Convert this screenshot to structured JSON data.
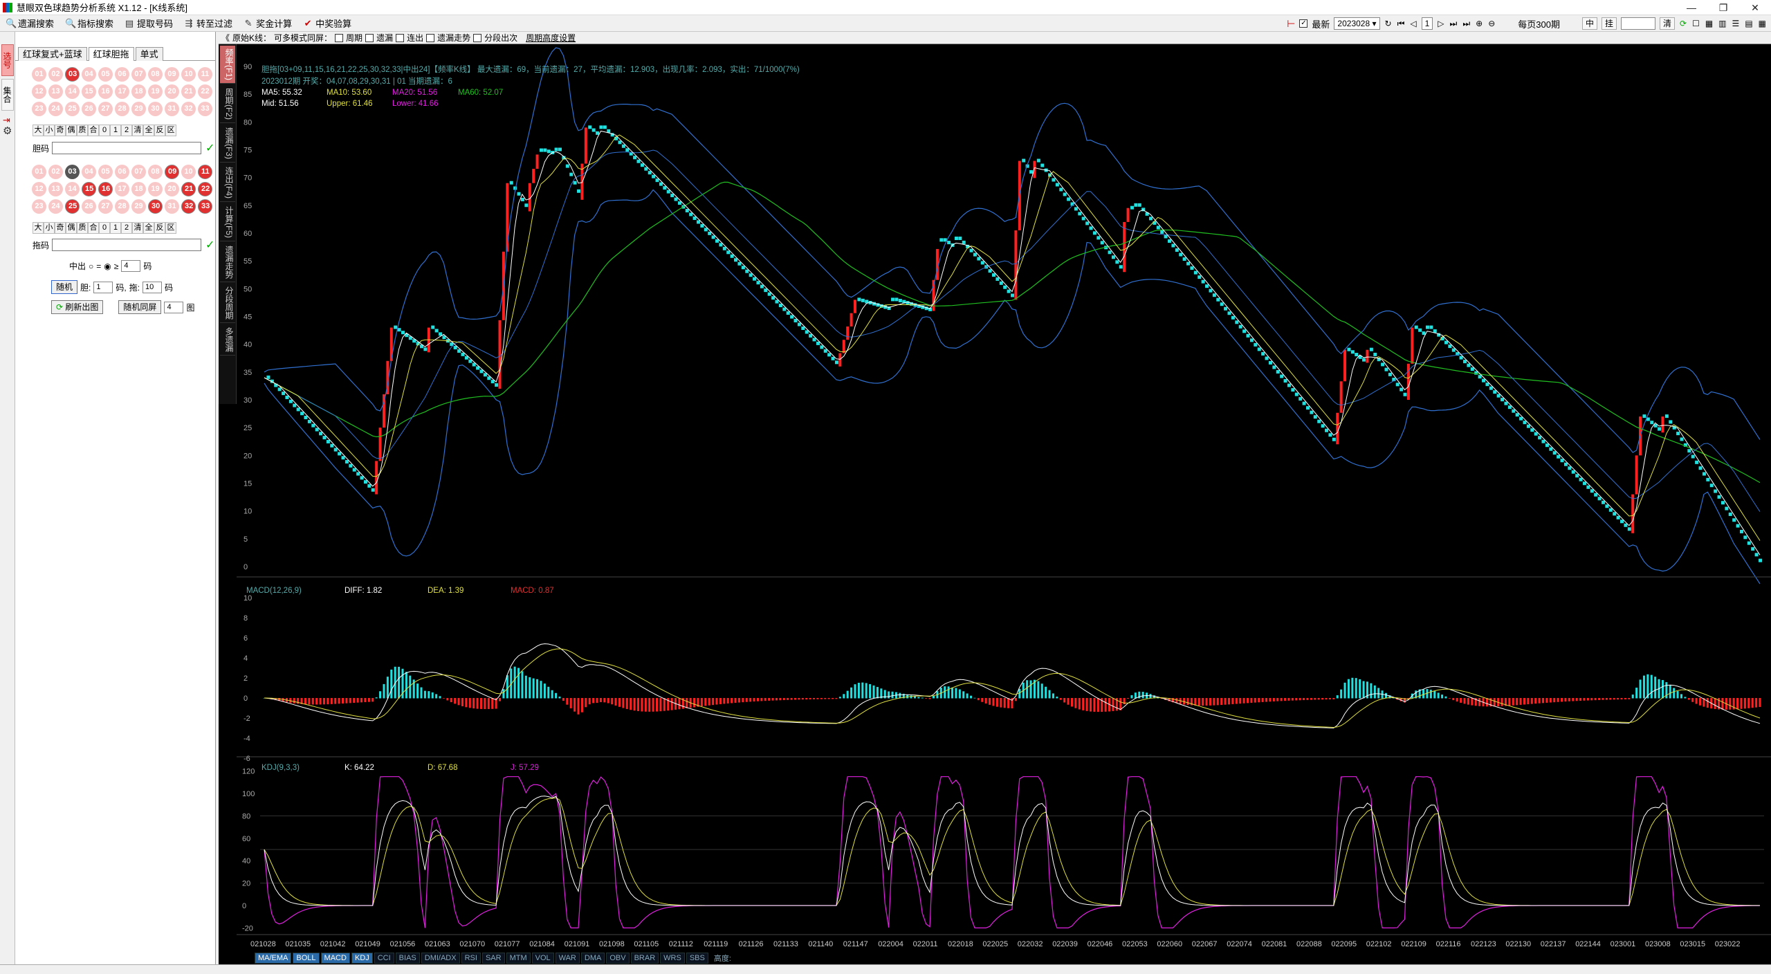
{
  "window": {
    "title": "慧眼双色球趋势分析系统 X1.12 - [K线系统]"
  },
  "toolbar": {
    "buttons": [
      {
        "icon": "search-icon",
        "label": "遗漏搜索"
      },
      {
        "icon": "search-icon",
        "label": "指标搜索"
      },
      {
        "icon": "doc-icon",
        "label": "提取号码"
      },
      {
        "icon": "filter-icon",
        "label": "转至过滤"
      },
      {
        "icon": "calc-icon",
        "label": "奖金计算"
      },
      {
        "icon": "check-icon",
        "label": "中奖验算"
      }
    ],
    "latest_label": "最新",
    "period_value": "2023028",
    "page_num": "1",
    "per_page_label": "每页300期",
    "mid_btn": "中",
    "hang_btn": "挂",
    "clear_btn": "清"
  },
  "left_tabs": [
    "选号",
    "集合"
  ],
  "panel_tabs": [
    "红球复式+蓝球",
    "红球胆拖",
    "单式"
  ],
  "balls_top": [
    "01",
    "02",
    "03",
    "04",
    "05",
    "06",
    "07",
    "08",
    "09",
    "10",
    "11",
    "12",
    "13",
    "14",
    "15",
    "16",
    "17",
    "18",
    "19",
    "20",
    "21",
    "22",
    "23",
    "24",
    "25",
    "26",
    "27",
    "28",
    "29",
    "30",
    "31",
    "32",
    "33"
  ],
  "balls_bottom": [
    "01",
    "02",
    "03",
    "04",
    "05",
    "06",
    "07",
    "08",
    "09",
    "10",
    "11",
    "12",
    "13",
    "14",
    "15",
    "16",
    "17",
    "18",
    "19",
    "20",
    "21",
    "22",
    "23",
    "24",
    "25",
    "26",
    "27",
    "28",
    "29",
    "30",
    "31",
    "32",
    "33"
  ],
  "opt_row": [
    "大",
    "小",
    "奇",
    "偶",
    "质",
    "合",
    "0",
    "1",
    "2",
    "清",
    "全",
    "反",
    "区"
  ],
  "dan_label": "胆码",
  "tuo_label": "拖码",
  "zhongchu": {
    "label": "中出",
    "eq": "=",
    "gt": "≥",
    "value": "4",
    "unit": "码"
  },
  "random": {
    "btn": "随机",
    "dan": "胆:",
    "dan_val": "1",
    "ma1": "码,",
    "tuo": "拖:",
    "tuo_val": "10",
    "ma2": "码"
  },
  "refresh": {
    "btn": "刷新出图",
    "random_same": "随机同屏",
    "count": "4",
    "unit": "图"
  },
  "chart_top": {
    "label": "原始K线：",
    "multi": "可多模式同屏：",
    "opts": [
      "周期",
      "遗漏",
      "连出",
      "遗漏走势",
      "分段出次"
    ],
    "link": "周期高度设置"
  },
  "chart_vtabs": [
    "频率(F1)",
    "周期(F2)",
    "遗漏(F3)",
    "连出(F4)",
    "计算(F5)",
    "遗漏走势",
    "分段周期",
    "多遗漏"
  ],
  "info": {
    "line1": "胆拖[03+09,11,15,16,21,22,25,30,32,33|中出24]【频率K线】 最大遗漏：69，当前遗漏：27，平均遗漏：12.903，出现几率：2.093，实出：71/1000(7%)",
    "line2": "2023012期 开奖：04,07,08,29,30,31 | 01 当期遗漏：6",
    "ma5": "MA5: 55.32",
    "ma10": "MA10: 53.60",
    "ma20": "MA20: 51.56",
    "ma60": "MA60: 52.07",
    "mid": "Mid: 51.56",
    "upper": "Upper: 61.46",
    "lower": "Lower: 41.66"
  },
  "macd": {
    "title": "MACD(12,26,9)",
    "diff": "DIFF: 1.82",
    "dea": "DEA: 1.39",
    "macd": "MACD: 0.87"
  },
  "kdj": {
    "title": "KDJ(9,3,3)",
    "k": "K: 64.22",
    "d": "D: 67.68",
    "j": "J: 57.29"
  },
  "colors": {
    "up": "#ff2020",
    "down": "#20e0e0",
    "ma5": "#ffffff",
    "ma10": "#e0e040",
    "ma20": "#e020e0",
    "ma60": "#20c020",
    "boll": "#3070d0"
  },
  "indicators": [
    "MA/EMA",
    "BOLL",
    "MACD",
    "KDJ",
    "CCI",
    "BIAS",
    "DMI/ADX",
    "RSI",
    "SAR",
    "MTM",
    "VOL",
    "WAR",
    "DMA",
    "OBV",
    "BRAR",
    "WRS",
    "SBS"
  ],
  "indicators_active": [
    "MA/EMA",
    "BOLL",
    "MACD",
    "KDJ"
  ],
  "zoom_label": "高度:",
  "chart_data": {
    "type": "candlestick",
    "y_ticks": [
      0,
      5,
      10,
      15,
      20,
      25,
      30,
      35,
      40,
      45,
      50,
      55,
      60,
      65,
      70,
      75,
      80,
      85,
      90
    ],
    "macd_ticks": [
      10,
      8,
      6,
      4,
      2,
      0,
      -2,
      -4,
      -6
    ],
    "kdj_ticks": [
      120,
      100,
      80,
      60,
      40,
      20,
      0,
      -20
    ],
    "x_ticks": [
      "021028",
      "021035",
      "021042",
      "021049",
      "021056",
      "021063",
      "021070",
      "021077",
      "021084",
      "021091",
      "021098",
      "021105",
      "021112",
      "021119",
      "021126",
      "021133",
      "021140",
      "021147",
      "022004",
      "022011",
      "022018",
      "022025",
      "022032",
      "022039",
      "022046",
      "022053",
      "022060",
      "022067",
      "022074",
      "022081",
      "022088",
      "022095",
      "022102",
      "022109",
      "022116",
      "022123",
      "022130",
      "022137",
      "022144",
      "023001",
      "023008",
      "023015",
      "023022"
    ],
    "pivots": [
      [
        0,
        34
      ],
      [
        29,
        13
      ],
      [
        44,
        43
      ],
      [
        62,
        32
      ],
      [
        71,
        69
      ],
      [
        78,
        75
      ],
      [
        84,
        66
      ],
      [
        90,
        79
      ],
      [
        153,
        36
      ],
      [
        168,
        48
      ],
      [
        178,
        46
      ],
      [
        185,
        59
      ],
      [
        200,
        48
      ],
      [
        206,
        73
      ],
      [
        229,
        53
      ],
      [
        233,
        65
      ],
      [
        286,
        22
      ],
      [
        295,
        39
      ],
      [
        305,
        30
      ],
      [
        311,
        43
      ],
      [
        365,
        6
      ],
      [
        374,
        27
      ],
      [
        400,
        0
      ]
    ]
  }
}
